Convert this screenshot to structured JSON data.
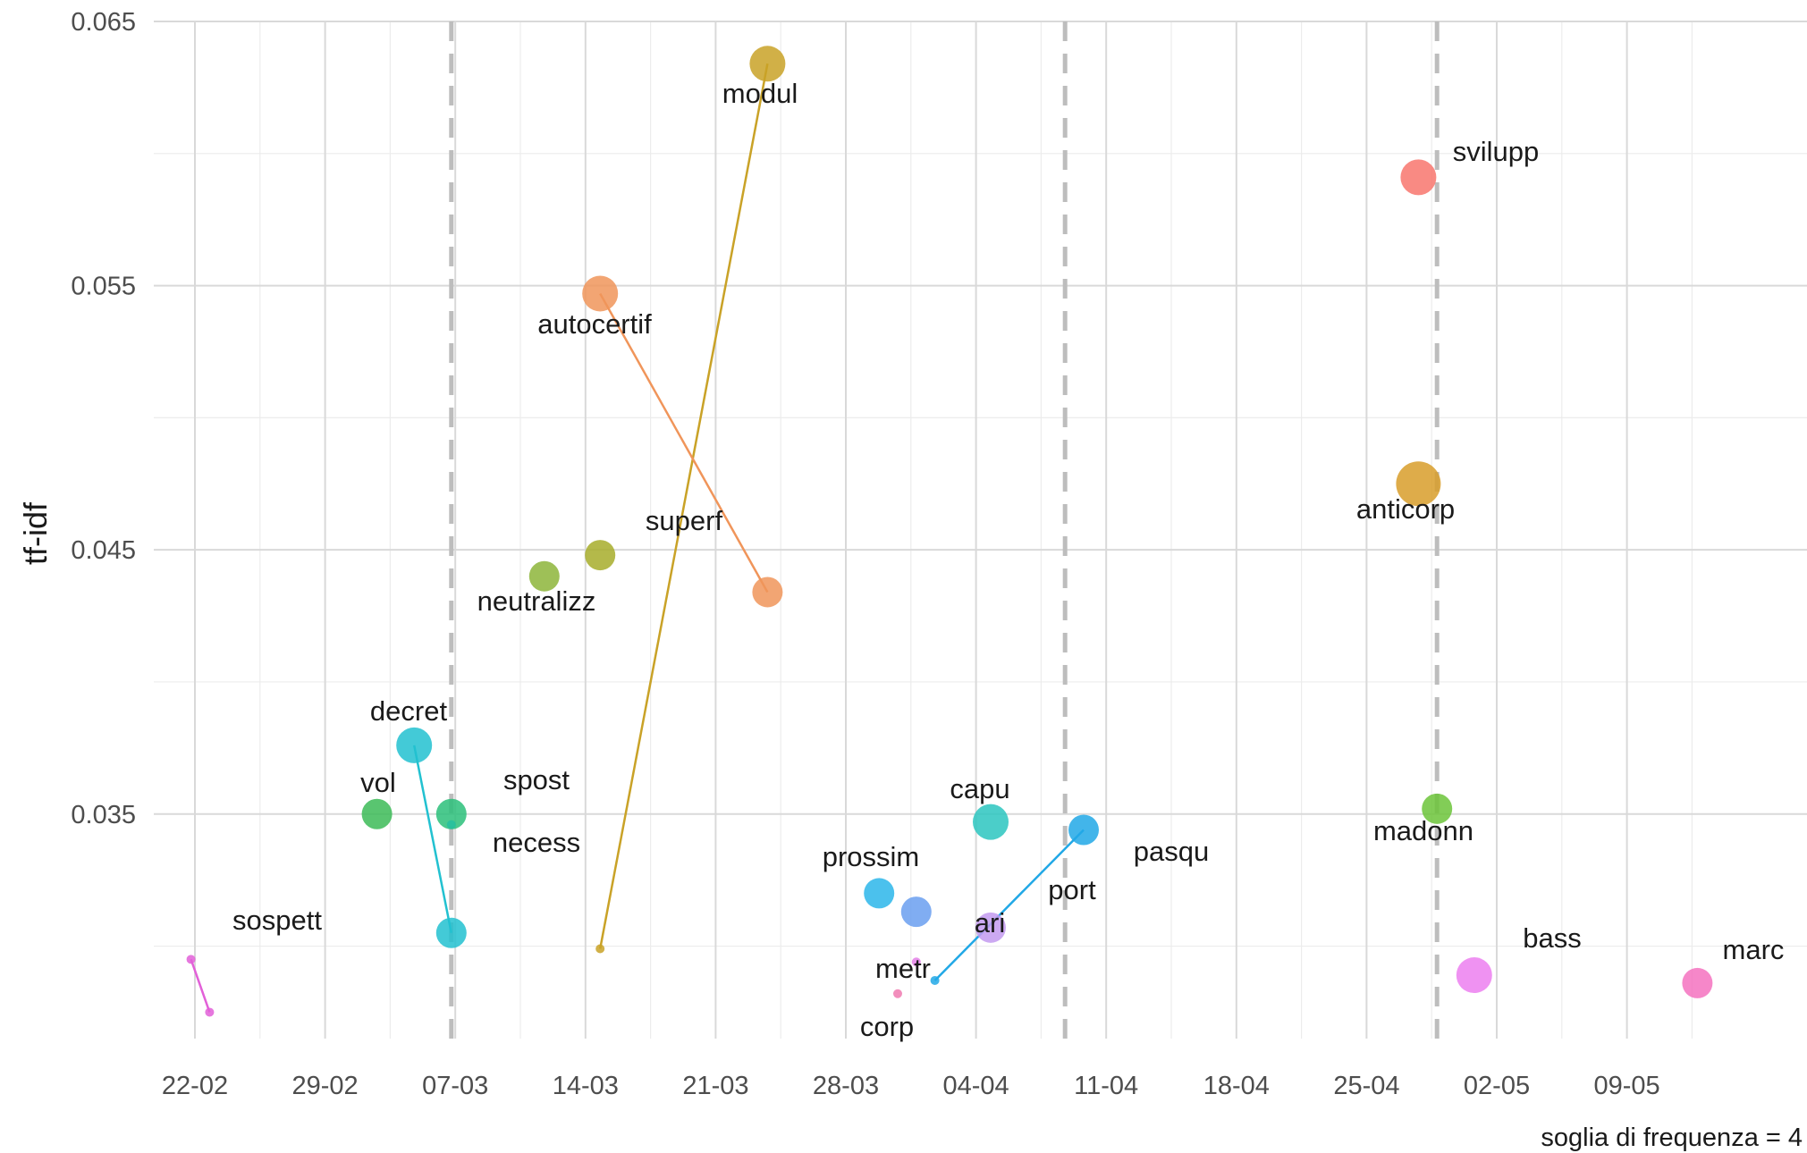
{
  "chart_data": {
    "type": "scatter",
    "ylabel": "tf-idf",
    "caption": "soglia di frequenza = 4",
    "y_ticks": [
      "0.035",
      "0.045",
      "0.055",
      "0.065"
    ],
    "y_tick_values": [
      0.035,
      0.045,
      0.055,
      0.065
    ],
    "x_ticks": [
      "22-02",
      "29-02",
      "07-03",
      "14-03",
      "21-03",
      "28-03",
      "04-04",
      "11-04",
      "18-04",
      "25-04",
      "02-05",
      "09-05"
    ],
    "x_axis_start": "2020-02-20",
    "ylim": [
      0.0265,
      0.065
    ],
    "grid": true,
    "vlines": [
      "2020-03-09",
      "2020-04-11",
      "2020-05-01"
    ],
    "points": [
      {
        "label": "modul",
        "x": "2020-03-26",
        "y": 0.0634,
        "size": 4,
        "color": "#c9a227"
      },
      {
        "label": "svilupp",
        "x": "2020-04-30",
        "y": 0.0591,
        "size": 4,
        "color": "#f8766d"
      },
      {
        "label": "autocertif",
        "x": "2020-03-17",
        "y": 0.0547,
        "size": 4,
        "color": "#f0955a"
      },
      {
        "label": "anticorp",
        "x": "2020-04-30",
        "y": 0.0475,
        "size": 5,
        "color": "#d89e2a"
      },
      {
        "label": "superf",
        "x": "2020-03-17",
        "y": 0.0448,
        "size": 3,
        "color": "#a7ad2a"
      },
      {
        "label": "neutralizz",
        "x": "2020-03-14",
        "y": 0.044,
        "size": 3,
        "color": "#8db53a"
      },
      {
        "label": "",
        "x": "2020-03-26",
        "y": 0.0434,
        "size": 3,
        "color": "#f0955a"
      },
      {
        "label": "decret",
        "x": "2020-03-07",
        "y": 0.0376,
        "size": 4,
        "color": "#22c1d0"
      },
      {
        "label": "vol",
        "x": "2020-03-05",
        "y": 0.035,
        "size": 3,
        "color": "#3cbb57"
      },
      {
        "label": "spost",
        "x": "2020-03-09",
        "y": 0.035,
        "size": 3,
        "color": "#2cc07a"
      },
      {
        "label": "necess",
        "x": "2020-03-09",
        "y": 0.0346,
        "size": 1,
        "color": "#26bfa0"
      },
      {
        "label": "",
        "x": "2020-03-09",
        "y": 0.0305,
        "size": 3,
        "color": "#22c1d0"
      },
      {
        "label": "capu",
        "x": "2020-04-07",
        "y": 0.0347,
        "size": 4,
        "color": "#2cc6c0"
      },
      {
        "label": "madonn",
        "x": "2020-05-01",
        "y": 0.0352,
        "size": 3,
        "color": "#6cc43a"
      },
      {
        "label": "pasqu",
        "x": "2020-04-12",
        "y": 0.0344,
        "size": 3,
        "color": "#21a8e6"
      },
      {
        "label": "",
        "x": "2020-04-04",
        "y": 0.0287,
        "size": 1,
        "color": "#21a8e6"
      },
      {
        "label": "prossim",
        "x": "2020-04-01",
        "y": 0.032,
        "size": 3,
        "color": "#2cb6ea"
      },
      {
        "label": "",
        "x": "2020-04-03",
        "y": 0.0313,
        "size": 3,
        "color": "#6a9ff0"
      },
      {
        "label": "port",
        "x": "2020-04-07",
        "y": 0.0307,
        "size": 3,
        "color": "#c39af0"
      },
      {
        "label": "ari",
        "x": "2020-04-03",
        "y": 0.0294,
        "size": 1,
        "color": "#e480e8"
      },
      {
        "label": "metr",
        "x": "2020-04-02",
        "y": 0.0282,
        "size": 1,
        "color": "#f07ab0"
      },
      {
        "label": "corp",
        "x": "",
        "y": null,
        "size": 0,
        "color": "#f07ab0"
      },
      {
        "label": "sospett",
        "x": "2020-02-24",
        "y": 0.0295,
        "size": 1,
        "color": "#e260d8"
      },
      {
        "label": "",
        "x": "2020-02-25",
        "y": 0.0275,
        "size": 1,
        "color": "#e260d8"
      },
      {
        "label": "",
        "x": "2020-03-17",
        "y": 0.0299,
        "size": 1,
        "color": "#c9a227"
      },
      {
        "label": "bass",
        "x": "2020-05-03",
        "y": 0.0289,
        "size": 4,
        "color": "#ec7ff0"
      },
      {
        "label": "marc",
        "x": "2020-05-15",
        "y": 0.0286,
        "size": 3,
        "color": "#f472c0"
      }
    ],
    "segments": [
      {
        "from": "modul",
        "to_x": "2020-03-17",
        "to_y": 0.0299,
        "color": "#c9a227"
      },
      {
        "from": "autocertif",
        "to_x": "2020-03-26",
        "to_y": 0.0434,
        "color": "#f0955a"
      },
      {
        "from": "decret",
        "to_x": "2020-03-09",
        "to_y": 0.0305,
        "color": "#22c1d0"
      },
      {
        "from": "pasqu",
        "to_x": "2020-04-04",
        "to_y": 0.0287,
        "color": "#21a8e6"
      },
      {
        "from": "sospett",
        "to_x": "2020-02-25",
        "to_y": 0.0275,
        "color": "#e260d8"
      }
    ]
  }
}
